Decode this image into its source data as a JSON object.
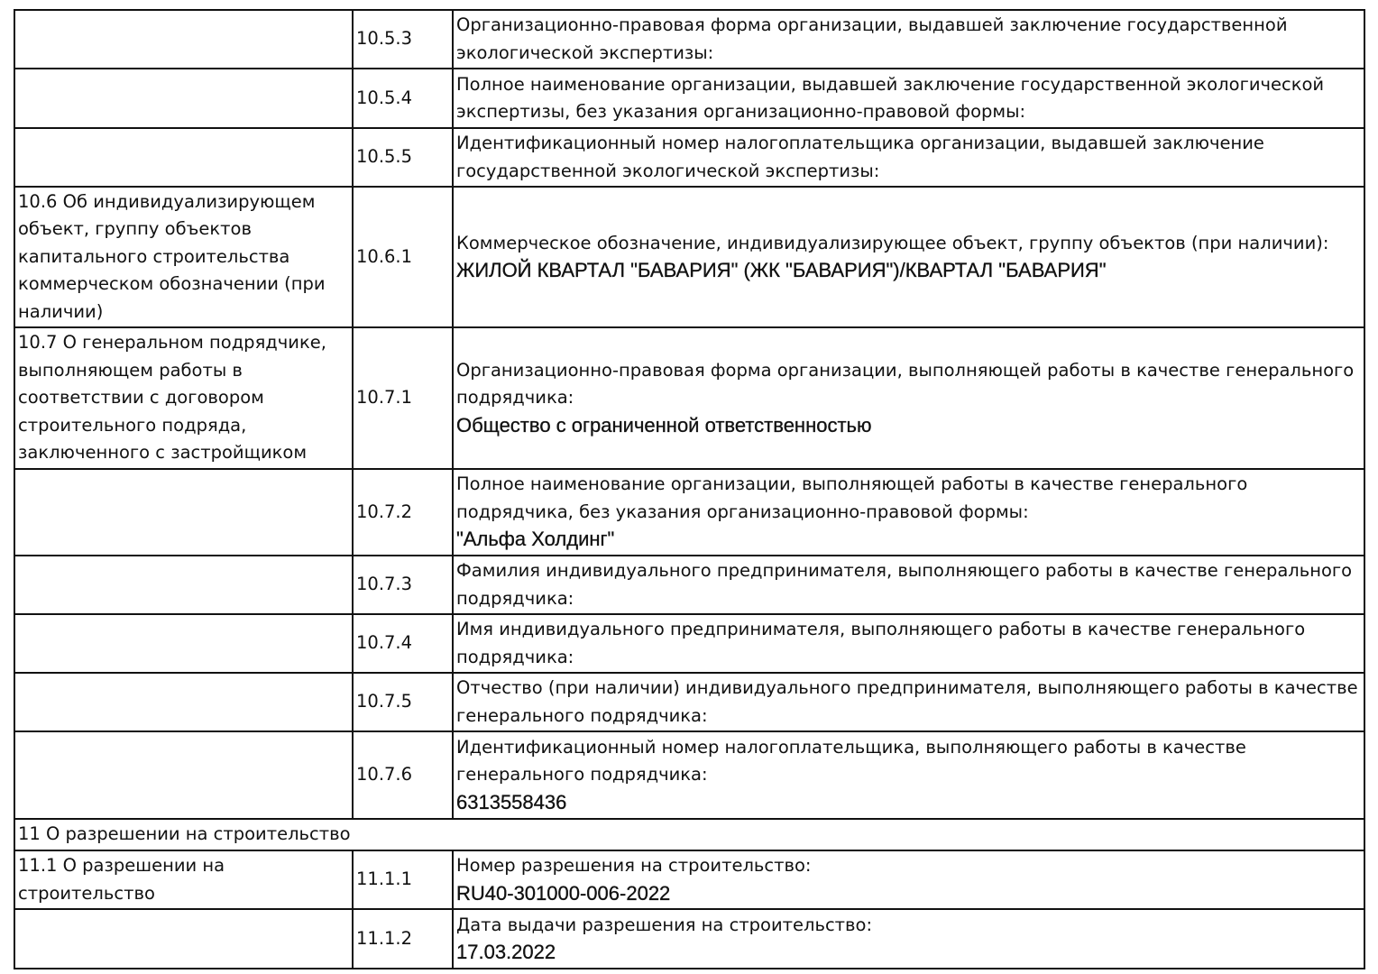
{
  "rows": [
    {
      "section": "",
      "code": "10.5.3",
      "label": "Организационно-правовая форма организации, выдавшей заключение государственной экологической экспертизы:",
      "value": ""
    },
    {
      "section": "",
      "code": "10.5.4",
      "label": "Полное наименование организации, выдавшей заключение государственной экологической экспертизы, без указания организационно-правовой формы:",
      "value": ""
    },
    {
      "section": "",
      "code": "10.5.5",
      "label": "Идентификационный номер налогоплательщика организации, выдавшей заключение государственной экологической экспертизы:",
      "value": ""
    },
    {
      "section": "10.6 Об индивидуализирующем объект, группу объектов капитального строительства коммерческом обозначении (при наличии)",
      "code": "10.6.1",
      "label": "Коммерческое обозначение, индивидуализирующее объект, группу объектов (при наличии):",
      "value": "ЖИЛОЙ КВАРТАЛ \"БАВАРИЯ\" (ЖК \"БАВАРИЯ\")/КВАРТАЛ \"БАВАРИЯ\""
    },
    {
      "section": "10.7 О генеральном подрядчике, выполняющем работы в соответствии с договором строительного подряда, заключенного с застройщиком",
      "code": "10.7.1",
      "label": "Организационно-правовая форма организации, выполняющей работы в качестве генерального подрядчика:",
      "value": "Общество с ограниченной ответственностью"
    },
    {
      "section": "",
      "code": "10.7.2",
      "label": "Полное наименование организации, выполняющей работы в качестве генерального подрядчика, без указания организационно-правовой формы:",
      "value": "\"Альфа Холдинг\""
    },
    {
      "section": "",
      "code": "10.7.3",
      "label": "Фамилия индивидуального предпринимателя, выполняющего работы в качестве генерального подрядчика:",
      "value": ""
    },
    {
      "section": "",
      "code": "10.7.4",
      "label": "Имя индивидуального предпринимателя, выполняющего работы в качестве генерального подрядчика:",
      "value": ""
    },
    {
      "section": "",
      "code": "10.7.5",
      "label": "Отчество (при наличии) индивидуального предпринимателя, выполняющего работы в качестве генерального подрядчика:",
      "value": ""
    },
    {
      "section": "",
      "code": "10.7.6",
      "label": "Идентификационный номер налогоплательщика, выполняющего работы в качестве генерального подрядчика:",
      "value": "6313558436"
    }
  ],
  "heading11": "11 О разрешении на строительство",
  "rows11": [
    {
      "section": "11.1 О разрешении на строительство",
      "code": "11.1.1",
      "label": "Номер разрешения на строительство:",
      "value": "RU40-301000-006-2022"
    },
    {
      "section": "",
      "code": "11.1.2",
      "label": "Дата выдачи разрешения на строительство:",
      "value": "17.03.2022"
    }
  ]
}
